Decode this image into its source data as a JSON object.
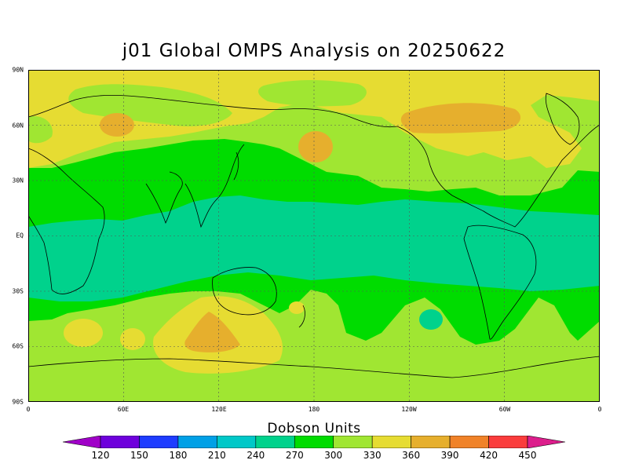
{
  "title": "j01 Global OMPS Analysis on 20250622",
  "map": {
    "lat_labels": [
      "90N",
      "60N",
      "30N",
      "EQ",
      "30S",
      "60S",
      "90S"
    ],
    "lon_labels": [
      "0",
      "60E",
      "120E",
      "180",
      "120W",
      "60W",
      "0"
    ]
  },
  "colorbar": {
    "title": "Dobson Units",
    "levels": [
      "120",
      "150",
      "180",
      "210",
      "240",
      "270",
      "300",
      "330",
      "360",
      "390",
      "420",
      "450"
    ],
    "colors": [
      "#a000c8",
      "#6e00dc",
      "#1e3cff",
      "#00a0e6",
      "#00c8c8",
      "#00d28c",
      "#00dc00",
      "#a0e632",
      "#e6dc32",
      "#e6af2d",
      "#f08228",
      "#fa3c3c",
      "#f00082",
      "#dc1e8c"
    ]
  },
  "field_colors": {
    "300-330": "#00dc00",
    "270-300": "#00d28c",
    "330-360": "#a0e632",
    "360-390": "#e6dc32",
    "390-420": "#e6af2d"
  }
}
